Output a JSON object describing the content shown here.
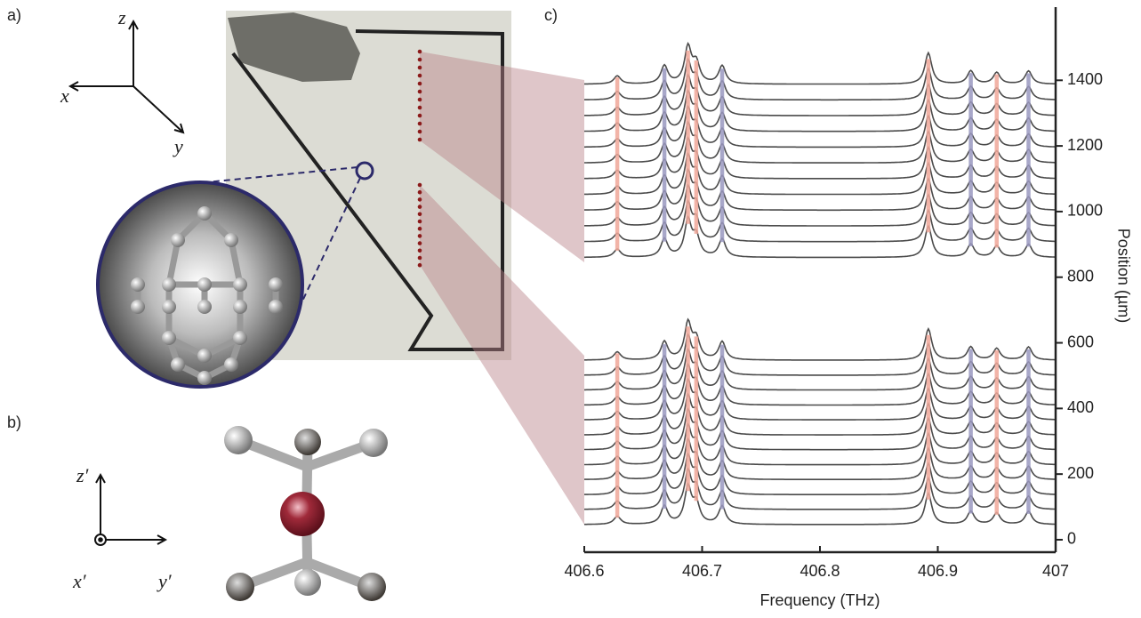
{
  "panels": {
    "a": "a)",
    "b": "b)",
    "c": "c)"
  },
  "axes_a": {
    "z": "z",
    "x": "x",
    "y": "y"
  },
  "axes_b": {
    "z": "z′",
    "x": "x′",
    "y": "y′"
  },
  "chart_data": {
    "type": "waterfall",
    "xlabel": "Frequency (THz)",
    "ylabel": "Position (µm)",
    "xlim": [
      406.6,
      407
    ],
    "xticks": [
      406.6,
      406.7,
      406.8,
      406.9,
      407
    ],
    "ylim": [
      -38,
      1623
    ],
    "yticks": [
      0,
      200,
      400,
      600,
      800,
      1000,
      1200,
      1400
    ],
    "line_color": "#4a4a4a",
    "peaks": [
      {
        "frequency": 406.628,
        "height": 25,
        "color": "#f0a89a"
      },
      {
        "frequency": 406.668,
        "height": 55,
        "color": "#9a98c0"
      },
      {
        "frequency": 406.688,
        "height": 110,
        "color": "#f0a89a"
      },
      {
        "frequency": 406.695,
        "height": 60,
        "color": "#f0a89a"
      },
      {
        "frequency": 406.717,
        "height": 55,
        "color": "#9a98c0"
      },
      {
        "frequency": 406.892,
        "height": 95,
        "color": "#f0a89a"
      },
      {
        "frequency": 406.928,
        "height": 40,
        "color": "#9a98c0"
      },
      {
        "frequency": 406.95,
        "height": 35,
        "color": "#f0a89a"
      },
      {
        "frequency": 406.977,
        "height": 40,
        "color": "#9a98c0"
      }
    ],
    "groups": [
      [
        860,
        908,
        956,
        1004,
        1052,
        1100,
        1148,
        1196,
        1244,
        1292,
        1340,
        1388
      ],
      [
        46,
        92,
        137,
        183,
        228,
        274,
        319,
        365,
        410,
        456,
        501,
        547
      ]
    ]
  }
}
